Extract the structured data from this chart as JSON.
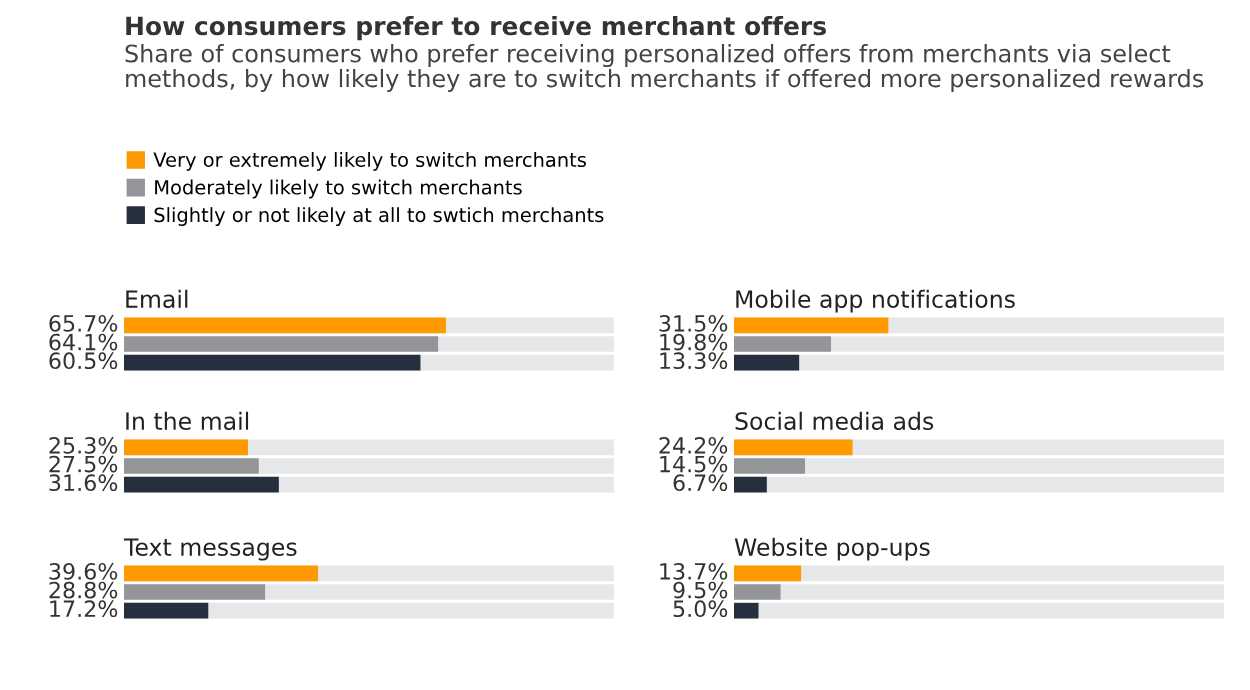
{
  "chart_data": [
    {
      "type": "bar",
      "orientation": "horizontal",
      "title": "Email",
      "categories": [
        null
      ],
      "xlim": [
        0,
        100
      ],
      "legend": "top left",
      "series": [
        {
          "name": "Very or extremely likely to switch merchants",
          "color": "#ff9900",
          "values": [
            65.7
          ],
          "value_labels": [
            "65.7%"
          ]
        },
        {
          "name": "Moderately likely to switch merchants",
          "color": "#939598",
          "values": [
            64.1
          ],
          "value_labels": [
            "64.1%"
          ]
        },
        {
          "name": "Slightly or not likely at all to swtich merchants",
          "color": "#252f3e",
          "values": [
            60.5
          ],
          "value_labels": [
            "60.5%"
          ]
        }
      ],
      "annotations": [
        "How consumers prefer to receive merchant offers",
        "Share of consumers who prefer receiving personalized offers from merchants via select methods, by how likely they are to switch merchants if offered more personalized rewards"
      ]
    },
    {
      "type": "bar",
      "orientation": "horizontal",
      "title": "In the mail",
      "categories": [
        null
      ],
      "xlim": [
        0,
        100
      ],
      "series": [
        {
          "color": "#ff9900",
          "values": [
            25.3
          ],
          "value_labels": [
            "25.3%"
          ]
        },
        {
          "color": "#939598",
          "values": [
            27.5
          ],
          "value_labels": [
            "27.5%"
          ]
        },
        {
          "color": "#252f3e",
          "values": [
            31.6
          ],
          "value_labels": [
            "31.6%"
          ]
        }
      ]
    },
    {
      "type": "bar",
      "orientation": "horizontal",
      "title": "Text messages",
      "categories": [
        null
      ],
      "xlim": [
        0,
        100
      ],
      "series": [
        {
          "color": "#ff9900",
          "values": [
            39.6
          ],
          "value_labels": [
            "39.6%"
          ]
        },
        {
          "color": "#939598",
          "values": [
            28.8
          ],
          "value_labels": [
            "28.8%"
          ]
        },
        {
          "color": "#252f3e",
          "values": [
            17.2
          ],
          "value_labels": [
            "17.2%"
          ]
        }
      ]
    },
    {
      "type": "bar",
      "orientation": "horizontal",
      "title": "Mobile app notifications",
      "categories": [
        null
      ],
      "xlim": [
        0,
        100
      ],
      "series": [
        {
          "color": "#ff9900",
          "values": [
            31.5
          ],
          "value_labels": [
            "31.5%"
          ]
        },
        {
          "color": "#939598",
          "values": [
            19.8
          ],
          "value_labels": [
            "19.8%"
          ]
        },
        {
          "color": "#252f3e",
          "values": [
            13.3
          ],
          "value_labels": [
            "13.3%"
          ]
        }
      ]
    },
    {
      "type": "bar",
      "orientation": "horizontal",
      "title": "Social media ads",
      "categories": [
        null
      ],
      "xlim": [
        0,
        100
      ],
      "series": [
        {
          "color": "#ff9900",
          "values": [
            24.2
          ],
          "value_labels": [
            "24.2%"
          ]
        },
        {
          "color": "#939598",
          "values": [
            14.5
          ],
          "value_labels": [
            "14.5%"
          ]
        },
        {
          "color": "#252f3e",
          "values": [
            6.7
          ],
          "value_labels": [
            "6.7%"
          ]
        }
      ]
    },
    {
      "type": "bar",
      "orientation": "horizontal",
      "title": "Website pop-ups",
      "categories": [
        null
      ],
      "xlim": [
        0,
        100
      ],
      "series": [
        {
          "color": "#ff9900",
          "values": [
            13.7
          ],
          "value_labels": [
            "13.7%"
          ]
        },
        {
          "color": "#939598",
          "values": [
            9.5
          ],
          "value_labels": [
            "9.5%"
          ]
        },
        {
          "color": "#252f3e",
          "values": [
            5.0
          ],
          "value_labels": [
            "5.0%"
          ]
        }
      ]
    }
  ]
}
